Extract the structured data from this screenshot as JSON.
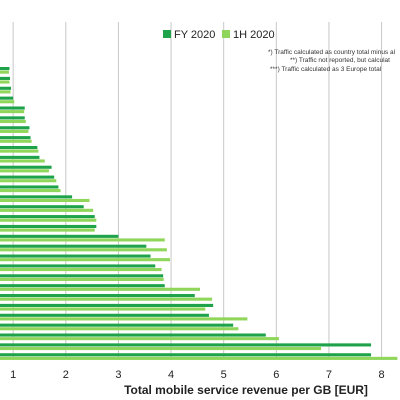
{
  "chart_data": {
    "type": "bar",
    "orientation": "horizontal",
    "xlabel": "Total mobile service revenue per GB [EUR]",
    "xlim": [
      0.75,
      8.35
    ],
    "xticks": [
      1,
      2,
      3,
      4,
      5,
      6,
      7,
      8
    ],
    "grid": true,
    "legend_position": "top",
    "colors": {
      "fy2020": "#1fa34a",
      "h12020": "#8fd65a",
      "grid": "#c8c8c8"
    },
    "series": [
      {
        "name": "FY 2020",
        "values": [
          0.93,
          0.94,
          0.96,
          1.0,
          1.22,
          1.22,
          1.31,
          1.33,
          1.46,
          1.5,
          1.73,
          1.78,
          1.86,
          2.12,
          2.34,
          2.55,
          2.58,
          3.0,
          3.53,
          3.61,
          3.7,
          3.85,
          3.88,
          4.45,
          4.8,
          4.72,
          5.18,
          5.8,
          7.8,
          7.8
        ]
      },
      {
        "name": "1H 2020",
        "values": [
          0.92,
          0.93,
          0.95,
          1.02,
          1.21,
          1.24,
          1.29,
          1.35,
          1.48,
          1.6,
          1.68,
          1.82,
          1.9,
          2.45,
          2.52,
          2.58,
          2.55,
          3.88,
          3.92,
          3.98,
          3.82,
          3.86,
          4.55,
          4.78,
          4.65,
          5.45,
          5.28,
          6.05,
          6.85,
          8.3
        ]
      }
    ],
    "annotations": [
      "*) Traffic calculated as country total minus al",
      "**) Traffic not reported, but calculat",
      "***) Traffic calculated as 3 Europe total"
    ]
  }
}
